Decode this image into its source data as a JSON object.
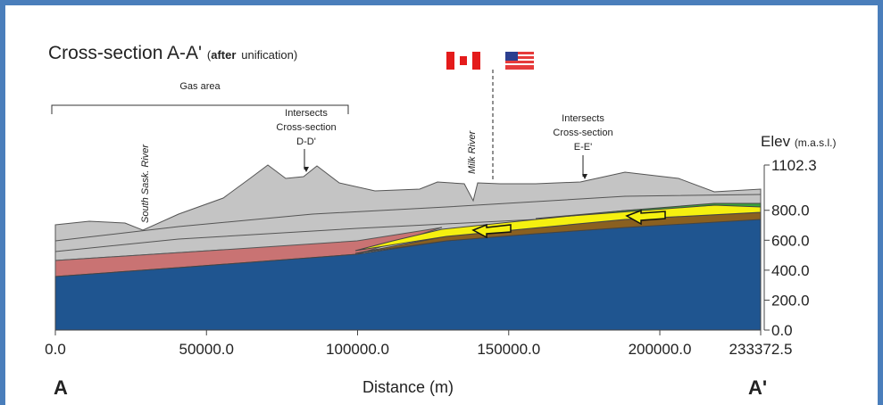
{
  "title": "Cross-section A-A'",
  "title_note": {
    "open": "(",
    "bold": "after",
    "rest": "unification)"
  },
  "annotations": {
    "gas_area": "Gas area",
    "south_sask": "South Sask. River",
    "milk_river": "Milk River",
    "dd": [
      "Intersects",
      "Cross-section",
      "D-D'"
    ],
    "ee": [
      "Intersects",
      "Cross-section",
      "E-E'"
    ]
  },
  "axes": {
    "xlabel": "Distance (m)",
    "ylabel": "Elev",
    "ylabel_unit": "(m.a.s.l.)",
    "left_end": "A",
    "right_end": "A'",
    "xlim": [
      0,
      233372.5
    ],
    "ylim": [
      0,
      1102.3
    ],
    "xticks": [
      {
        "value": 0,
        "label": "0.0"
      },
      {
        "value": 50000,
        "label": "50000.0"
      },
      {
        "value": 100000,
        "label": "100000.0"
      },
      {
        "value": 150000,
        "label": "150000.0"
      },
      {
        "value": 200000,
        "label": "200000.0"
      },
      {
        "value": 233372.5,
        "label": "233372.5"
      }
    ],
    "yticks": [
      {
        "value": 0,
        "label": "0.0"
      },
      {
        "value": 200,
        "label": "200.0"
      },
      {
        "value": 400,
        "label": "400.0"
      },
      {
        "value": 600,
        "label": "600.0"
      },
      {
        "value": 800,
        "label": "800.0"
      },
      {
        "value": 1102.3,
        "label": "1102.3"
      }
    ]
  }
}
